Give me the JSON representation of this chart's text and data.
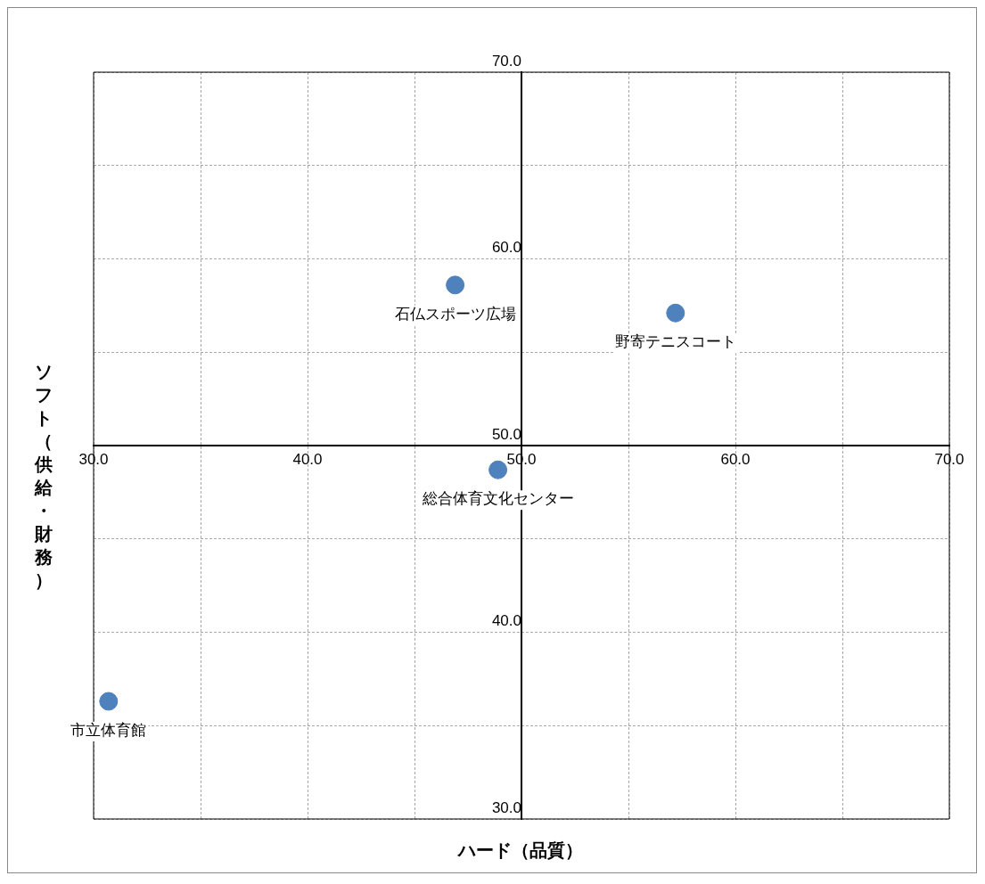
{
  "chart_data": {
    "type": "scatter",
    "xlabel": "ハード（品質）",
    "ylabel": "ソフト（供給・財務）",
    "xlim": [
      30,
      70
    ],
    "ylim": [
      30,
      70
    ],
    "xticks": [
      {
        "value": 30,
        "label": "30.0"
      },
      {
        "value": 35,
        "label": null
      },
      {
        "value": 40,
        "label": "40.0"
      },
      {
        "value": 45,
        "label": null
      },
      {
        "value": 50,
        "label": "50.0"
      },
      {
        "value": 55,
        "label": null
      },
      {
        "value": 60,
        "label": "60.0"
      },
      {
        "value": 65,
        "label": null
      },
      {
        "value": 70,
        "label": "70.0"
      }
    ],
    "yticks": [
      {
        "value": 30,
        "label": "30.0"
      },
      {
        "value": 35,
        "label": null
      },
      {
        "value": 40,
        "label": "40.0"
      },
      {
        "value": 45,
        "label": null
      },
      {
        "value": 50,
        "label": "50.0"
      },
      {
        "value": 55,
        "label": null
      },
      {
        "value": 60,
        "label": "60.0"
      },
      {
        "value": 65,
        "label": null
      },
      {
        "value": 70,
        "label": "70.0"
      }
    ],
    "grid": true,
    "legend": false,
    "marker": "circle",
    "series": [
      {
        "name": "石仏スポーツ広場",
        "color": "#4f81bd",
        "x": [
          46.9
        ],
        "values": [
          58.6
        ]
      },
      {
        "name": "野寄テニスコート",
        "color": "#4f81bd",
        "x": [
          57.2
        ],
        "values": [
          57.1
        ]
      },
      {
        "name": "総合体育文化センター",
        "color": "#4f81bd",
        "x": [
          48.9
        ],
        "values": [
          48.7
        ]
      },
      {
        "name": "市立体育館",
        "color": "#4f81bd",
        "x": [
          30.7
        ],
        "values": [
          36.3
        ]
      }
    ]
  }
}
